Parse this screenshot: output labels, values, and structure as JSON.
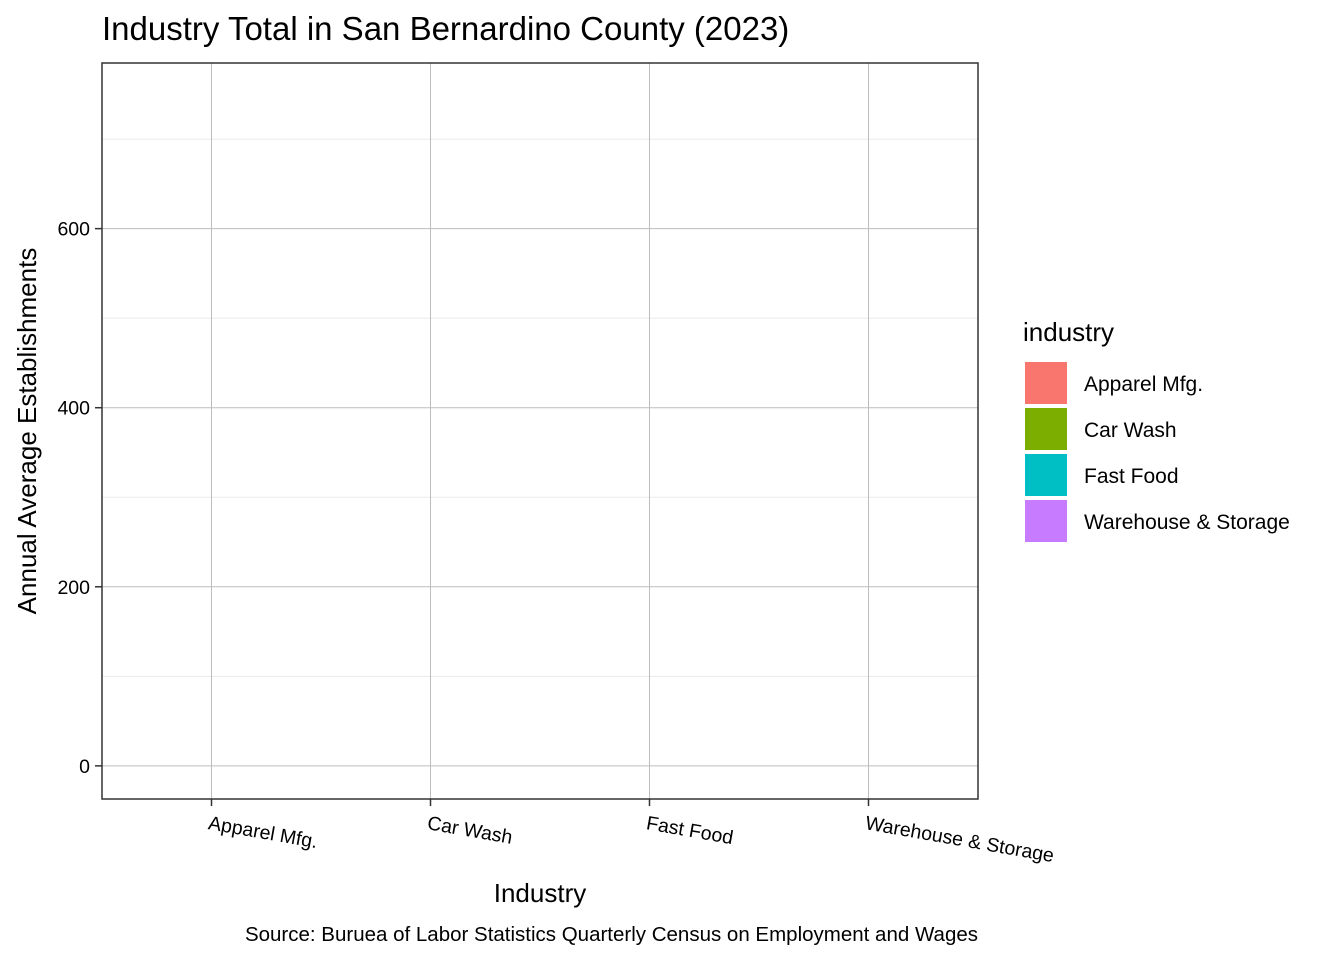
{
  "chart_data": {
    "type": "bar",
    "title": "Industry Total in San Bernardino County (2023)",
    "xlabel": "Industry",
    "ylabel": "Annual Average Establishments",
    "caption": "Source: Buruea of Labor Statistics Quarterly Census on Employment and Wages",
    "categories": [
      "Apparel Mfg.",
      "Car Wash",
      "Fast Food",
      "Warehouse & Storage"
    ],
    "values": [
      null,
      null,
      null,
      null
    ],
    "ylim": [
      -37,
      785
    ],
    "y_ticks": [
      0,
      200,
      400,
      600
    ],
    "y_tick_labels": [
      "0",
      "200",
      "400",
      "600"
    ],
    "y_minor_ticks": [
      100,
      300,
      500,
      700
    ],
    "grid": true,
    "legend": {
      "title": "industry",
      "placement": "right",
      "items": [
        {
          "label": "Apparel Mfg.",
          "color": "#F8766D"
        },
        {
          "label": "Car Wash",
          "color": "#7CAE00"
        },
        {
          "label": "Fast Food",
          "color": "#00BFC4"
        },
        {
          "label": "Warehouse & Storage",
          "color": "#C77CFF"
        }
      ]
    }
  }
}
